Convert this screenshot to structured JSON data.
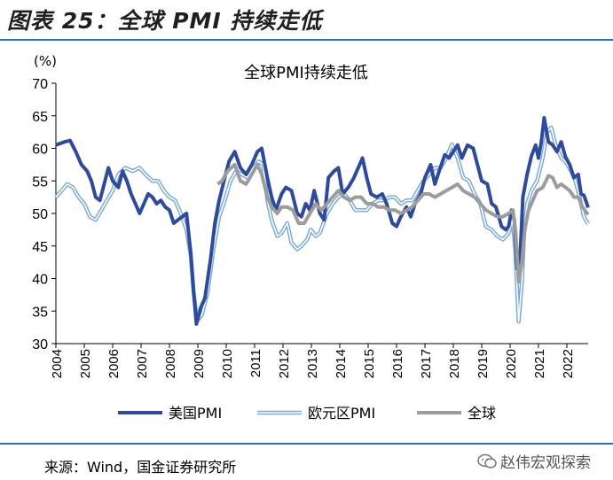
{
  "figure": {
    "title": "图表 25：全球 PMI 持续走低",
    "source": "来源：Wind，国金证券研究所",
    "watermark": "赵伟宏观探索"
  },
  "chart_data": {
    "type": "line",
    "title": "全球PMI持续走低",
    "ylabel": "(%)",
    "ylim": [
      30,
      70
    ],
    "yticks": [
      30,
      35,
      40,
      45,
      50,
      55,
      60,
      65,
      70
    ],
    "xlim": [
      2004.0,
      2022.75
    ],
    "xticks": [
      "2004",
      "2005",
      "2006",
      "2007",
      "2008",
      "2009",
      "2010",
      "2011",
      "2012",
      "2013",
      "2014",
      "2015",
      "2016",
      "2017",
      "2018",
      "2019",
      "2020",
      "2021",
      "2022"
    ],
    "grid": false,
    "legend_position": "bottom",
    "series": [
      {
        "name": "美国PMI",
        "color": "#2e4a9c",
        "style": "thick",
        "points": [
          [
            2004.0,
            60.5
          ],
          [
            2004.3,
            61.0
          ],
          [
            2004.5,
            61.2
          ],
          [
            2004.7,
            59.5
          ],
          [
            2004.9,
            57.5
          ],
          [
            2005.1,
            56.5
          ],
          [
            2005.25,
            55.0
          ],
          [
            2005.4,
            52.5
          ],
          [
            2005.55,
            52.0
          ],
          [
            2005.7,
            54.5
          ],
          [
            2005.85,
            57.0
          ],
          [
            2006.0,
            55.0
          ],
          [
            2006.2,
            54.0
          ],
          [
            2006.35,
            56.5
          ],
          [
            2006.5,
            55.0
          ],
          [
            2006.65,
            53.0
          ],
          [
            2006.8,
            51.5
          ],
          [
            2006.95,
            50.0
          ],
          [
            2007.1,
            51.5
          ],
          [
            2007.25,
            53.0
          ],
          [
            2007.4,
            52.5
          ],
          [
            2007.55,
            51.5
          ],
          [
            2007.7,
            52.0
          ],
          [
            2007.85,
            51.0
          ],
          [
            2008.0,
            50.5
          ],
          [
            2008.15,
            48.5
          ],
          [
            2008.3,
            49.0
          ],
          [
            2008.45,
            49.5
          ],
          [
            2008.6,
            50.0
          ],
          [
            2008.75,
            44.0
          ],
          [
            2008.85,
            38.0
          ],
          [
            2008.95,
            33.0
          ],
          [
            2009.1,
            35.5
          ],
          [
            2009.25,
            37.0
          ],
          [
            2009.45,
            43.0
          ],
          [
            2009.6,
            48.5
          ],
          [
            2009.75,
            52.0
          ],
          [
            2009.95,
            55.5
          ],
          [
            2010.1,
            58.0
          ],
          [
            2010.3,
            59.5
          ],
          [
            2010.5,
            57.0
          ],
          [
            2010.7,
            56.0
          ],
          [
            2010.9,
            57.5
          ],
          [
            2011.1,
            59.5
          ],
          [
            2011.25,
            60.0
          ],
          [
            2011.45,
            55.5
          ],
          [
            2011.6,
            52.5
          ],
          [
            2011.75,
            50.5
          ],
          [
            2011.95,
            53.0
          ],
          [
            2012.1,
            54.0
          ],
          [
            2012.3,
            53.5
          ],
          [
            2012.5,
            50.0
          ],
          [
            2012.65,
            49.5
          ],
          [
            2012.8,
            51.5
          ],
          [
            2012.95,
            50.5
          ],
          [
            2013.1,
            53.5
          ],
          [
            2013.3,
            50.0
          ],
          [
            2013.45,
            49.0
          ],
          [
            2013.6,
            55.5
          ],
          [
            2013.8,
            56.5
          ],
          [
            2013.95,
            57.0
          ],
          [
            2014.1,
            53.0
          ],
          [
            2014.3,
            54.0
          ],
          [
            2014.5,
            55.5
          ],
          [
            2014.65,
            57.0
          ],
          [
            2014.8,
            58.5
          ],
          [
            2014.95,
            55.5
          ],
          [
            2015.1,
            53.0
          ],
          [
            2015.3,
            52.5
          ],
          [
            2015.5,
            53.0
          ],
          [
            2015.65,
            51.5
          ],
          [
            2015.85,
            48.5
          ],
          [
            2016.0,
            48.0
          ],
          [
            2016.15,
            49.5
          ],
          [
            2016.35,
            51.0
          ],
          [
            2016.5,
            49.5
          ],
          [
            2016.65,
            51.5
          ],
          [
            2016.85,
            53.0
          ],
          [
            2017.0,
            55.5
          ],
          [
            2017.2,
            57.5
          ],
          [
            2017.35,
            54.5
          ],
          [
            2017.5,
            56.5
          ],
          [
            2017.7,
            59.0
          ],
          [
            2017.85,
            58.5
          ],
          [
            2018.0,
            59.5
          ],
          [
            2018.15,
            60.5
          ],
          [
            2018.3,
            58.5
          ],
          [
            2018.5,
            60.5
          ],
          [
            2018.7,
            60.0
          ],
          [
            2018.85,
            57.5
          ],
          [
            2019.0,
            55.0
          ],
          [
            2019.2,
            54.5
          ],
          [
            2019.35,
            51.5
          ],
          [
            2019.5,
            51.0
          ],
          [
            2019.7,
            48.0
          ],
          [
            2019.85,
            47.5
          ],
          [
            2019.95,
            48.0
          ],
          [
            2020.05,
            50.5
          ],
          [
            2020.15,
            49.0
          ],
          [
            2020.25,
            41.5
          ],
          [
            2020.35,
            43.0
          ],
          [
            2020.45,
            52.5
          ],
          [
            2020.6,
            56.0
          ],
          [
            2020.75,
            58.8
          ],
          [
            2020.9,
            60.5
          ],
          [
            2021.0,
            58.5
          ],
          [
            2021.1,
            61.0
          ],
          [
            2021.2,
            64.7
          ],
          [
            2021.35,
            61.0
          ],
          [
            2021.5,
            60.5
          ],
          [
            2021.65,
            59.5
          ],
          [
            2021.8,
            61.0
          ],
          [
            2021.95,
            58.7
          ],
          [
            2022.1,
            57.5
          ],
          [
            2022.25,
            55.5
          ],
          [
            2022.4,
            56.0
          ],
          [
            2022.5,
            53.0
          ],
          [
            2022.6,
            52.8
          ],
          [
            2022.75,
            50.9
          ]
        ]
      },
      {
        "name": "欧元区PMI",
        "color": "#7aaad6",
        "style": "double",
        "points": [
          [
            2004.0,
            52.5
          ],
          [
            2004.2,
            53.5
          ],
          [
            2004.4,
            54.5
          ],
          [
            2004.6,
            54.0
          ],
          [
            2004.8,
            52.5
          ],
          [
            2005.0,
            51.5
          ],
          [
            2005.2,
            49.5
          ],
          [
            2005.4,
            49.0
          ],
          [
            2005.6,
            50.5
          ],
          [
            2005.8,
            52.0
          ],
          [
            2006.0,
            53.5
          ],
          [
            2006.2,
            56.0
          ],
          [
            2006.45,
            57.0
          ],
          [
            2006.7,
            56.5
          ],
          [
            2006.95,
            57.0
          ],
          [
            2007.15,
            56.0
          ],
          [
            2007.4,
            55.0
          ],
          [
            2007.6,
            55.0
          ],
          [
            2007.8,
            53.5
          ],
          [
            2008.0,
            52.5
          ],
          [
            2008.2,
            52.0
          ],
          [
            2008.4,
            50.0
          ],
          [
            2008.6,
            47.5
          ],
          [
            2008.75,
            43.5
          ],
          [
            2008.85,
            38.0
          ],
          [
            2008.98,
            33.5
          ],
          [
            2009.15,
            34.5
          ],
          [
            2009.35,
            38.0
          ],
          [
            2009.55,
            44.5
          ],
          [
            2009.75,
            49.5
          ],
          [
            2009.95,
            52.0
          ],
          [
            2010.15,
            55.0
          ],
          [
            2010.35,
            56.5
          ],
          [
            2010.55,
            56.0
          ],
          [
            2010.75,
            55.5
          ],
          [
            2010.95,
            57.0
          ],
          [
            2011.15,
            58.0
          ],
          [
            2011.3,
            57.5
          ],
          [
            2011.45,
            52.0
          ],
          [
            2011.6,
            49.0
          ],
          [
            2011.8,
            46.5
          ],
          [
            2011.95,
            47.0
          ],
          [
            2012.15,
            48.5
          ],
          [
            2012.3,
            45.5
          ],
          [
            2012.5,
            44.5
          ],
          [
            2012.65,
            45.0
          ],
          [
            2012.85,
            46.0
          ],
          [
            2012.98,
            47.5
          ],
          [
            2013.15,
            46.5
          ],
          [
            2013.3,
            47.0
          ],
          [
            2013.55,
            50.0
          ],
          [
            2013.75,
            51.5
          ],
          [
            2013.95,
            52.5
          ],
          [
            2014.15,
            53.0
          ],
          [
            2014.35,
            52.0
          ],
          [
            2014.55,
            50.5
          ],
          [
            2014.75,
            50.5
          ],
          [
            2014.95,
            50.5
          ],
          [
            2015.15,
            51.5
          ],
          [
            2015.35,
            52.0
          ],
          [
            2015.55,
            52.0
          ],
          [
            2015.75,
            52.5
          ],
          [
            2015.95,
            52.5
          ],
          [
            2016.15,
            51.5
          ],
          [
            2016.35,
            52.0
          ],
          [
            2016.55,
            52.0
          ],
          [
            2016.75,
            53.5
          ],
          [
            2016.95,
            55.0
          ],
          [
            2017.15,
            56.0
          ],
          [
            2017.35,
            57.0
          ],
          [
            2017.55,
            57.0
          ],
          [
            2017.75,
            58.5
          ],
          [
            2017.95,
            60.6
          ],
          [
            2018.15,
            58.5
          ],
          [
            2018.35,
            55.5
          ],
          [
            2018.55,
            55.0
          ],
          [
            2018.75,
            53.0
          ],
          [
            2018.95,
            51.5
          ],
          [
            2019.15,
            48.0
          ],
          [
            2019.35,
            47.5
          ],
          [
            2019.55,
            46.5
          ],
          [
            2019.75,
            46.0
          ],
          [
            2019.95,
            47.0
          ],
          [
            2020.08,
            49.0
          ],
          [
            2020.18,
            44.5
          ],
          [
            2020.3,
            33.4
          ],
          [
            2020.42,
            39.5
          ],
          [
            2020.5,
            47.5
          ],
          [
            2020.6,
            51.5
          ],
          [
            2020.75,
            53.5
          ],
          [
            2020.95,
            55.0
          ],
          [
            2021.15,
            58.5
          ],
          [
            2021.3,
            62.5
          ],
          [
            2021.45,
            63.2
          ],
          [
            2021.6,
            60.5
          ],
          [
            2021.8,
            58.5
          ],
          [
            2021.95,
            58.0
          ],
          [
            2022.15,
            56.5
          ],
          [
            2022.3,
            55.0
          ],
          [
            2022.45,
            52.5
          ],
          [
            2022.6,
            49.5
          ],
          [
            2022.75,
            48.4
          ]
        ]
      },
      {
        "name": "全球",
        "color": "#9c9c9c",
        "style": "thick",
        "points": [
          [
            2009.7,
            54.5
          ],
          [
            2009.85,
            55.0
          ],
          [
            2010.05,
            56.5
          ],
          [
            2010.3,
            57.5
          ],
          [
            2010.5,
            55.0
          ],
          [
            2010.7,
            54.5
          ],
          [
            2010.9,
            56.0
          ],
          [
            2011.1,
            57.5
          ],
          [
            2011.25,
            56.0
          ],
          [
            2011.45,
            52.5
          ],
          [
            2011.6,
            51.0
          ],
          [
            2011.8,
            50.0
          ],
          [
            2011.95,
            51.0
          ],
          [
            2012.15,
            51.0
          ],
          [
            2012.35,
            50.5
          ],
          [
            2012.55,
            48.5
          ],
          [
            2012.75,
            48.5
          ],
          [
            2012.95,
            50.0
          ],
          [
            2013.15,
            51.5
          ],
          [
            2013.35,
            50.5
          ],
          [
            2013.55,
            51.5
          ],
          [
            2013.75,
            52.5
          ],
          [
            2013.95,
            53.5
          ],
          [
            2014.15,
            52.5
          ],
          [
            2014.35,
            52.0
          ],
          [
            2014.55,
            52.5
          ],
          [
            2014.75,
            52.5
          ],
          [
            2014.95,
            51.5
          ],
          [
            2015.15,
            51.5
          ],
          [
            2015.35,
            51.0
          ],
          [
            2015.55,
            51.0
          ],
          [
            2015.75,
            50.5
          ],
          [
            2015.95,
            50.5
          ],
          [
            2016.15,
            50.0
          ],
          [
            2016.35,
            50.5
          ],
          [
            2016.55,
            51.0
          ],
          [
            2016.75,
            52.0
          ],
          [
            2016.95,
            53.0
          ],
          [
            2017.15,
            53.0
          ],
          [
            2017.35,
            52.5
          ],
          [
            2017.55,
            53.0
          ],
          [
            2017.75,
            53.5
          ],
          [
            2017.95,
            54.0
          ],
          [
            2018.15,
            54.5
          ],
          [
            2018.35,
            53.5
          ],
          [
            2018.55,
            53.0
          ],
          [
            2018.75,
            52.5
          ],
          [
            2018.95,
            51.5
          ],
          [
            2019.15,
            50.5
          ],
          [
            2019.35,
            50.0
          ],
          [
            2019.55,
            49.5
          ],
          [
            2019.75,
            49.5
          ],
          [
            2019.95,
            50.0
          ],
          [
            2020.1,
            50.5
          ],
          [
            2020.2,
            47.0
          ],
          [
            2020.3,
            39.5
          ],
          [
            2020.42,
            42.5
          ],
          [
            2020.52,
            47.5
          ],
          [
            2020.65,
            50.5
          ],
          [
            2020.8,
            52.0
          ],
          [
            2020.95,
            53.5
          ],
          [
            2021.15,
            54.0
          ],
          [
            2021.35,
            55.8
          ],
          [
            2021.5,
            55.5
          ],
          [
            2021.65,
            54.0
          ],
          [
            2021.8,
            54.5
          ],
          [
            2021.95,
            54.0
          ],
          [
            2022.1,
            53.5
          ],
          [
            2022.25,
            52.5
          ],
          [
            2022.4,
            52.5
          ],
          [
            2022.55,
            51.0
          ],
          [
            2022.75,
            49.8
          ]
        ]
      }
    ]
  }
}
